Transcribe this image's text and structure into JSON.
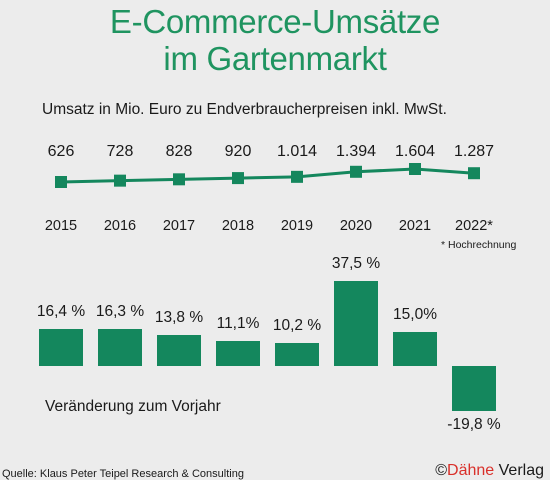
{
  "title_line1": "E-Commerce-Umsätze",
  "title_line2": "im Gartenmarkt",
  "subtitle": "Umsatz in Mio. Euro zu Endverbraucherpreisen inkl. MwSt.",
  "footnote": "* Hochrechnung",
  "change_label": "Veränderung zum Vorjahr",
  "source": "Quelle: Klaus Peter Teipel Research & Consulting",
  "copyright_prefix": "©",
  "copyright_brand": "Dähne",
  "copyright_suffix": " Verlag",
  "colors": {
    "accent": "#14875d",
    "title": "#1f9460",
    "brand": "#d9302a"
  },
  "chart_data": [
    {
      "type": "line",
      "years": [
        "2015",
        "2016",
        "2017",
        "2018",
        "2019",
        "2020",
        "2021",
        "2022*"
      ],
      "values": [
        626,
        728,
        828,
        920,
        1014,
        1394,
        1604,
        1287
      ],
      "value_labels": [
        "626",
        "728",
        "828",
        "920",
        "1.014",
        "1.394",
        "1.604",
        "1.287"
      ],
      "ylabel": "Umsatz in Mio. Euro zu Endverbraucherpreisen inkl. MwSt."
    },
    {
      "type": "bar",
      "values": [
        16.4,
        16.3,
        13.8,
        11.1,
        10.2,
        37.5,
        15.0,
        -19.8
      ],
      "value_labels": [
        "16,4 %",
        "16,3 %",
        "13,8 %",
        "11,1%",
        "10,2 %",
        "37,5 %",
        "15,0%",
        "-19,8 %"
      ],
      "ylabel": "Veränderung zum Vorjahr"
    }
  ]
}
